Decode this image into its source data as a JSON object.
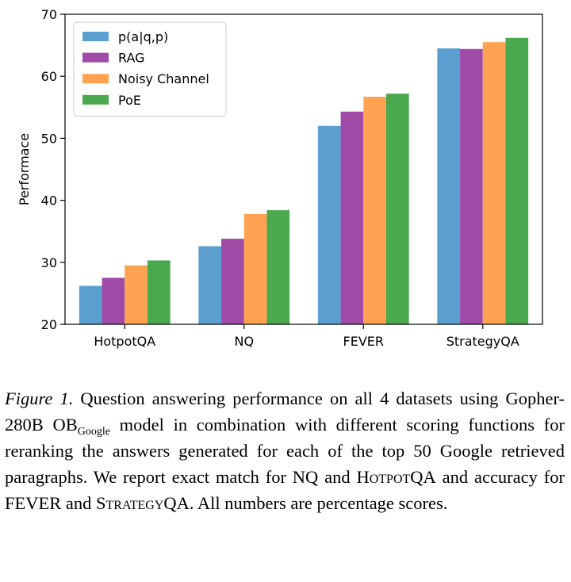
{
  "chart_data": {
    "type": "bar",
    "title": "",
    "xlabel": "",
    "ylabel": "Performace",
    "ylim": [
      20,
      70
    ],
    "yticks": [
      20,
      30,
      40,
      50,
      60,
      70
    ],
    "categories": [
      "HotpotQA",
      "NQ",
      "FEVER",
      "StrategyQA"
    ],
    "legend_position": "top-left",
    "series": [
      {
        "name": "p(a|q,p)",
        "color": "#5a9fd0",
        "values": [
          26.2,
          32.6,
          52.0,
          64.5
        ]
      },
      {
        "name": "RAG",
        "color": "#a04ba8",
        "values": [
          27.5,
          33.8,
          54.3,
          64.4
        ]
      },
      {
        "name": "Noisy Channel",
        "color": "#ffa352",
        "values": [
          29.5,
          37.8,
          56.7,
          65.5
        ]
      },
      {
        "name": "PoE",
        "color": "#4aa84e",
        "values": [
          30.3,
          38.4,
          57.2,
          66.2
        ]
      }
    ]
  },
  "caption": {
    "figure_label": "Figure 1.",
    "text_1": " Question answering performance on all 4 datasets using Gopher-280B OB",
    "subscript": "Google",
    "text_2": " model in combination with different scoring functions for reranking the answers generated for each of the top 50 Google retrieved paragraphs. We report exact match for NQ and ",
    "dataset_1": "HotpotQA",
    "text_3": " and accuracy for FEVER and ",
    "dataset_2": "StrategyQA",
    "text_4": ". All numbers are percentage scores."
  }
}
